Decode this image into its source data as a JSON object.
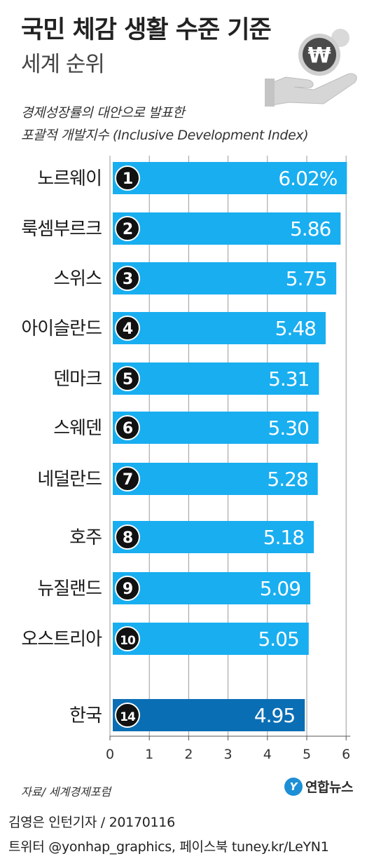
{
  "header": {
    "title": "국민 체감 생활 수준 기준",
    "subtitle": "세계 순위",
    "desc_line1": "경제성장률의 대안으로 발표한",
    "desc_line2": "포괄적 개발지수 (Inclusive Development Index)",
    "currency_symbol": "₩"
  },
  "chart_data": {
    "type": "bar",
    "orientation": "horizontal",
    "categories": [
      "노르웨이",
      "룩셈부르크",
      "스위스",
      "아이슬란드",
      "덴마크",
      "스웨덴",
      "네덜란드",
      "호주",
      "뉴질랜드",
      "오스트리아",
      "한국"
    ],
    "ranks": [
      "1",
      "2",
      "3",
      "4",
      "5",
      "6",
      "7",
      "8",
      "9",
      "10",
      "14"
    ],
    "values": [
      6.02,
      5.86,
      5.75,
      5.48,
      5.31,
      5.3,
      5.28,
      5.18,
      5.09,
      5.05,
      4.95
    ],
    "value_labels": [
      "6.02%",
      "5.86",
      "5.75",
      "5.48",
      "5.31",
      "5.30",
      "5.28",
      "5.18",
      "5.09",
      "5.05",
      "4.95"
    ],
    "highlight": "한국",
    "xlim": [
      0,
      6
    ],
    "xticks": [
      "0",
      "1",
      "2",
      "3",
      "4",
      "5",
      "6"
    ],
    "grid": true,
    "colors": {
      "bar": "#19aef0",
      "highlight_bar": "#0a6eb4",
      "badge": "#111111",
      "grid": "#9a9a9a"
    }
  },
  "footer": {
    "source": "자료/ 세계경제포럼",
    "logo_mark": "Y",
    "logo_text": "연합뉴스",
    "credit_line1": "김영은 인턴기자 / 20170116",
    "credit_line2": "트위터 @yonhap_graphics, 페이스북 tuney.kr/LeYN1"
  }
}
